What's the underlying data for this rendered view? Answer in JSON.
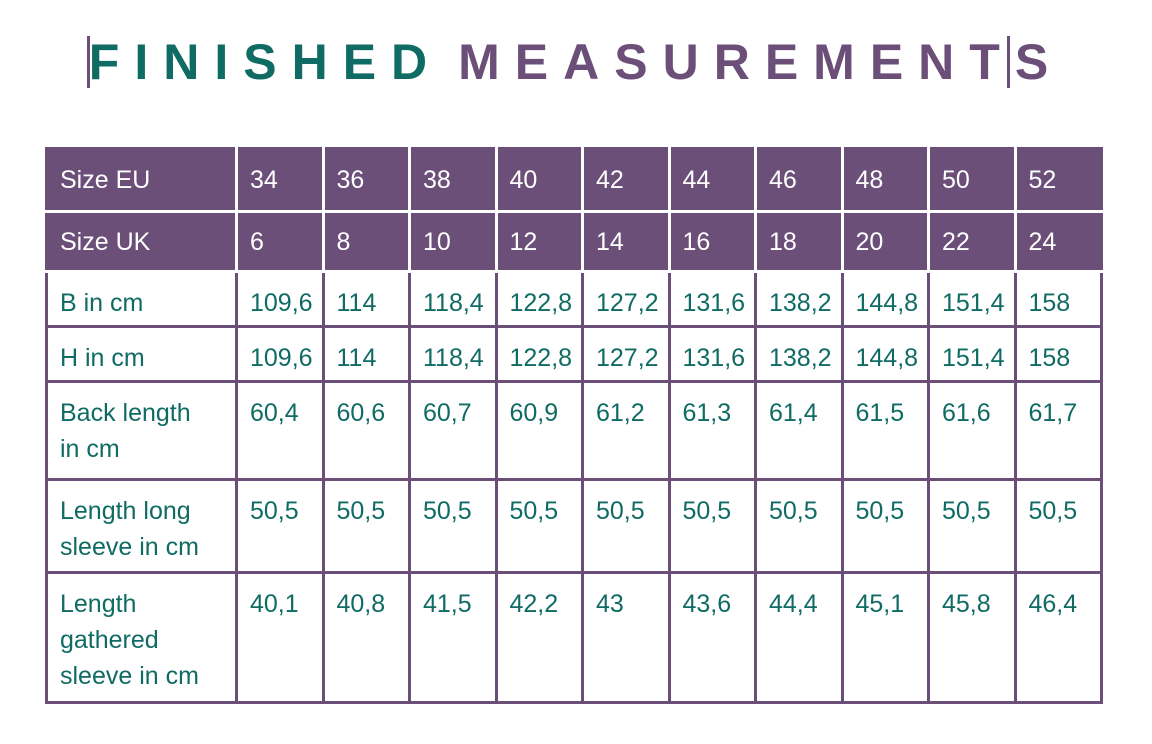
{
  "header": {
    "title_part1": "FINISHED",
    "title_part2": "MEASUREMENTS"
  },
  "table": {
    "header_rows": [
      [
        "Size EU",
        "34",
        "36",
        "38",
        "40",
        "42",
        "44",
        "46",
        "48",
        "50",
        "52"
      ],
      [
        "Size UK",
        "6",
        "8",
        "10",
        "12",
        "14",
        "16",
        "18",
        "20",
        "22",
        "24"
      ]
    ],
    "rows": [
      [
        "B in cm",
        "109,6",
        "114",
        "118,4",
        "122,8",
        "127,2",
        "131,6",
        "138,2",
        "144,8",
        "151,4",
        "158"
      ],
      [
        "H in cm",
        "109,6",
        "114",
        "118,4",
        "122,8",
        "127,2",
        "131,6",
        "138,2",
        "144,8",
        "151,4",
        "158"
      ],
      [
        "Back length in cm",
        "60,4",
        "60,6",
        "60,7",
        "60,9",
        "61,2",
        "61,3",
        "61,4",
        "61,5",
        "61,6",
        "61,7"
      ],
      [
        "Length long sleeve in cm",
        "50,5",
        "50,5",
        "50,5",
        "50,5",
        "50,5",
        "50,5",
        "50,5",
        "50,5",
        "50,5",
        "50,5"
      ],
      [
        "Length gathered sleeve in cm",
        "40,1",
        "40,8",
        "41,5",
        "42,2",
        "43",
        "43,6",
        "44,4",
        "45,1",
        "45,8",
        "46,4"
      ]
    ]
  }
}
